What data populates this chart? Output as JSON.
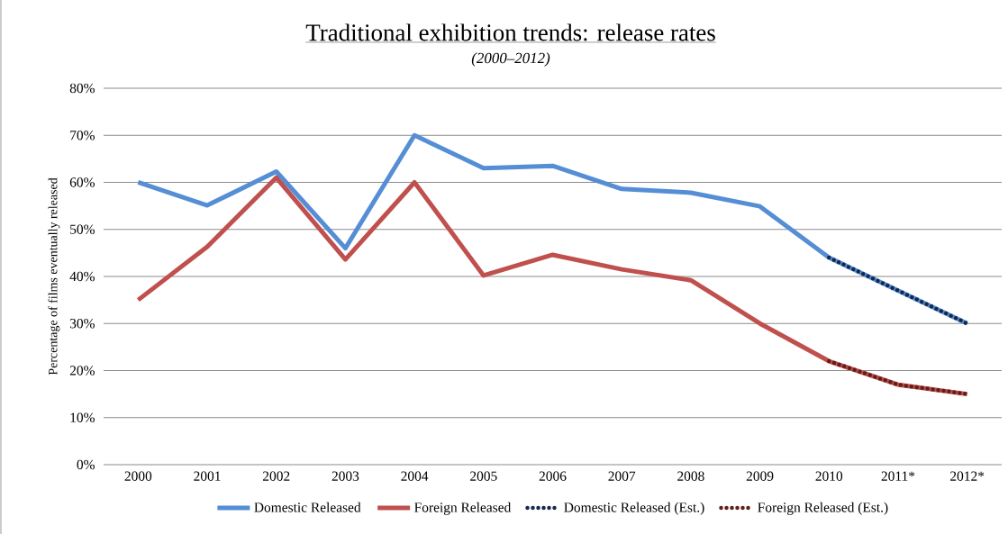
{
  "chart_data": {
    "type": "line",
    "title": "Traditional exhibition trends: release rates",
    "subtitle": "(2000–2012)",
    "ylabel": "Percentage of films eventually released",
    "categories": [
      "2000",
      "2001",
      "2002",
      "2003",
      "2004",
      "2005",
      "2006",
      "2007",
      "2008",
      "2009",
      "2010",
      "2011*",
      "2012*"
    ],
    "series": [
      {
        "name": "Domestic Released",
        "color": "#558ed5",
        "line_style": "solid",
        "values": [
          60,
          55.1,
          62.3,
          46,
          70,
          63,
          63.5,
          58.6,
          57.8,
          54.9,
          44,
          37,
          30
        ]
      },
      {
        "name": "Foreign Released",
        "color": "#c0504d",
        "line_style": "solid",
        "values": [
          35,
          46.3,
          61,
          43.6,
          60,
          40.2,
          44.6,
          41.5,
          39.2,
          30,
          22,
          17,
          15
        ]
      },
      {
        "name": "Domestic Released (Est.)",
        "color": "#17294a",
        "line_style": "dotted",
        "values": [
          null,
          null,
          null,
          null,
          null,
          null,
          null,
          null,
          null,
          null,
          44,
          37,
          30
        ]
      },
      {
        "name": "Foreign Released (Est.)",
        "color": "#5e1f1d",
        "line_style": "dotted",
        "values": [
          null,
          null,
          null,
          null,
          null,
          null,
          null,
          null,
          null,
          null,
          22,
          17,
          15
        ]
      }
    ],
    "ylim": [
      0,
      80
    ],
    "yticks": [
      {
        "value": 0,
        "label": "0%"
      },
      {
        "value": 10,
        "label": "10%"
      },
      {
        "value": 20,
        "label": "20%"
      },
      {
        "value": 30,
        "label": "30%"
      },
      {
        "value": 40,
        "label": "40%"
      },
      {
        "value": 50,
        "label": "50%"
      },
      {
        "value": 60,
        "label": "60%"
      },
      {
        "value": 70,
        "label": "70%"
      },
      {
        "value": 80,
        "label": "80%"
      }
    ],
    "grid": "y",
    "legend": "bottom",
    "marker": "none"
  }
}
